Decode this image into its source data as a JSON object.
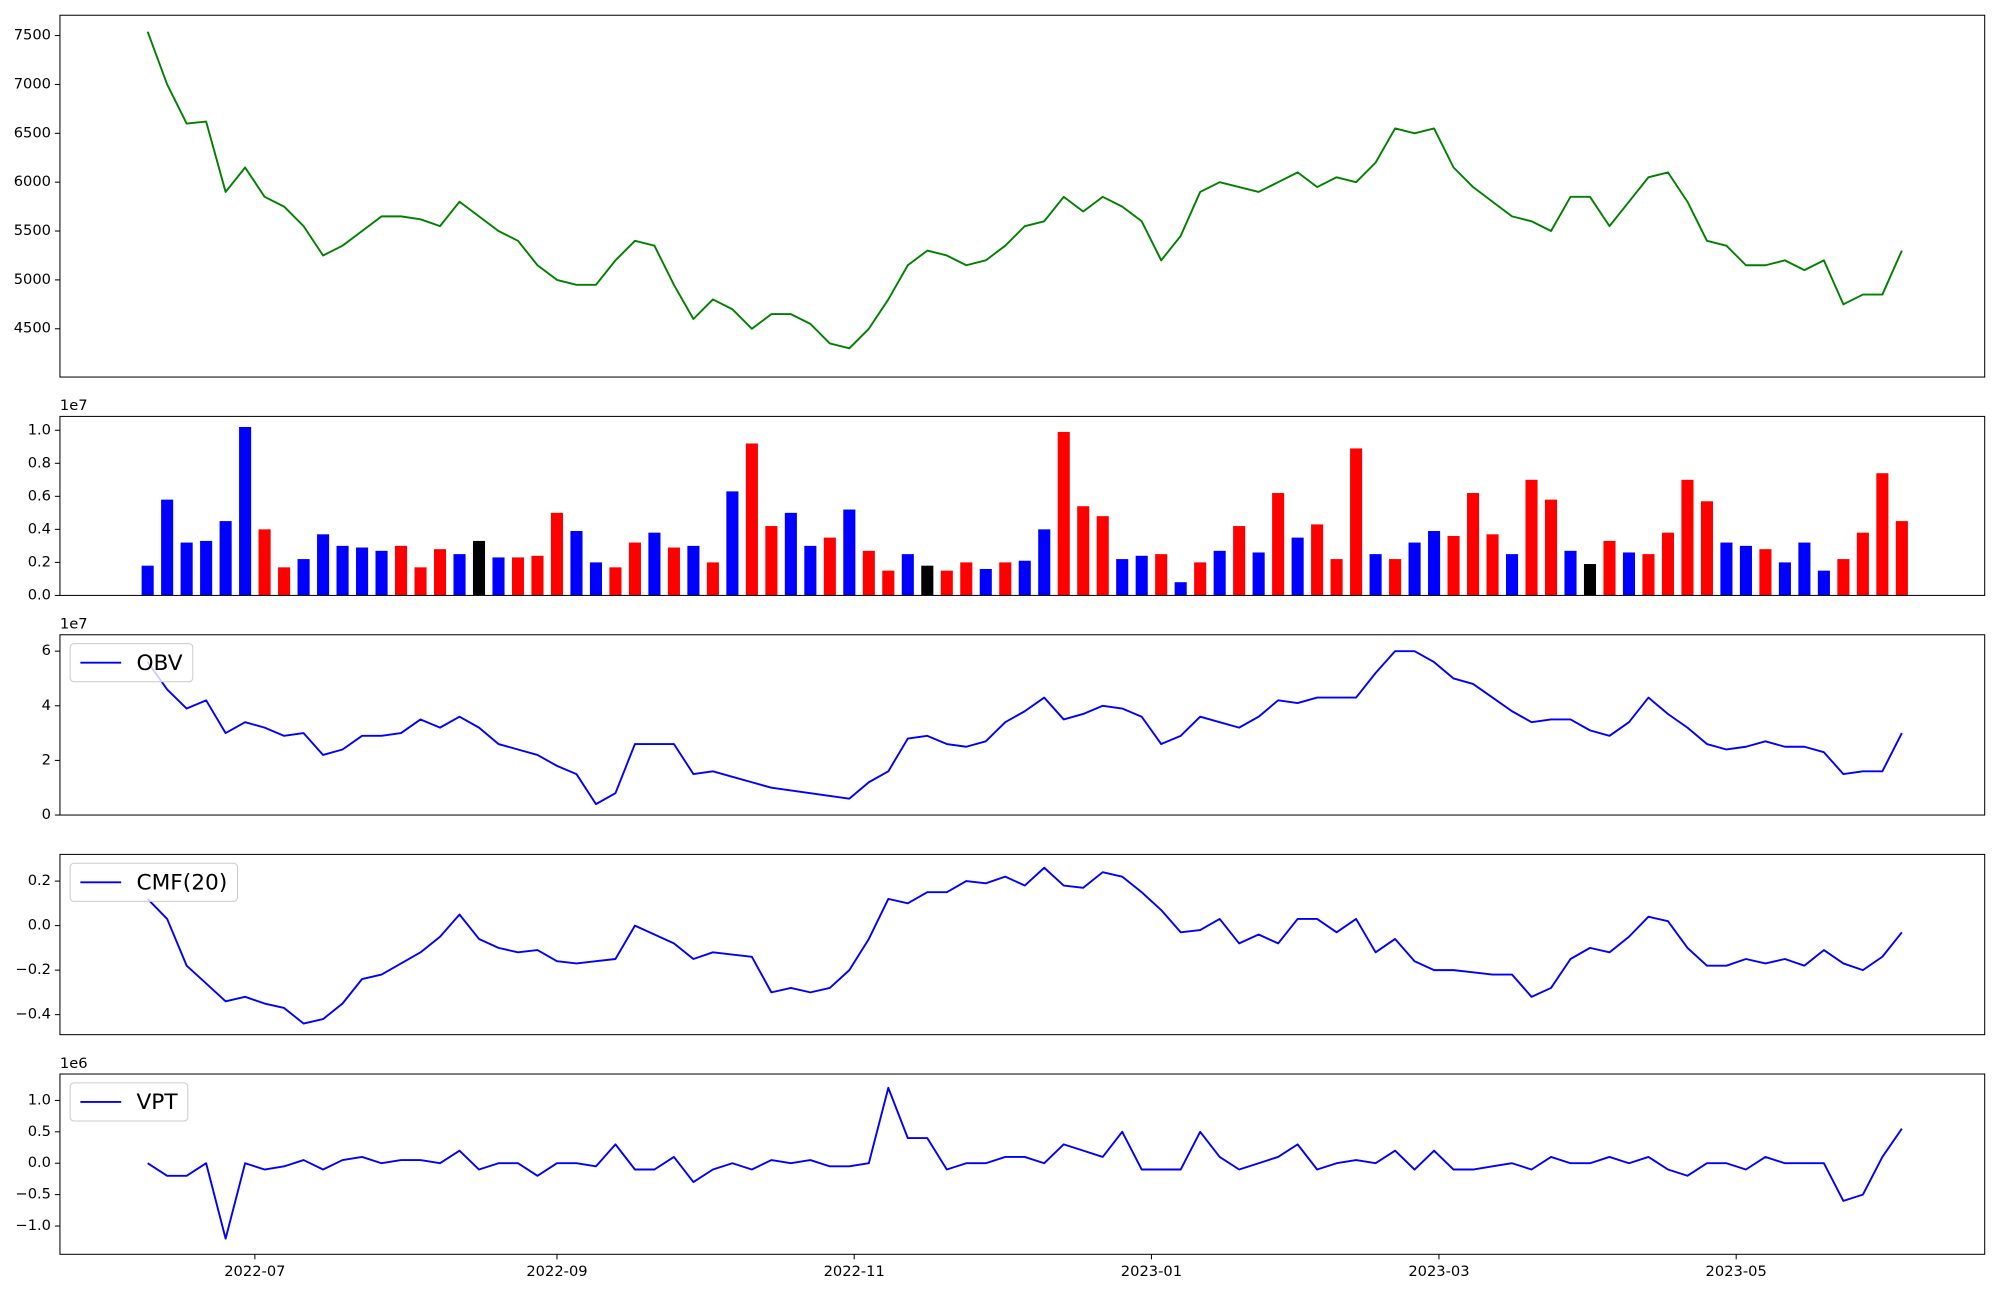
{
  "chart_data": [
    {
      "type": "line",
      "xlim": [
        -40,
        355
      ],
      "ylim": [
        4006,
        7708
      ],
      "yticks": [
        4500,
        5000,
        5500,
        6000,
        6500,
        7000,
        7500
      ],
      "x": [
        -22,
        -18,
        -14,
        -10,
        -6,
        -2,
        2,
        6,
        10,
        14,
        18,
        22,
        26,
        30,
        34,
        38,
        42,
        46,
        50,
        54,
        58,
        62,
        66,
        70,
        74,
        78,
        82,
        86,
        90,
        94,
        98,
        102,
        106,
        110,
        114,
        118,
        122,
        126,
        130,
        134,
        138,
        142,
        146,
        150,
        154,
        158,
        162,
        166,
        170,
        174,
        178,
        182,
        186,
        190,
        194,
        198,
        202,
        206,
        210,
        214,
        218,
        222,
        226,
        230,
        234,
        238,
        242,
        246,
        250,
        254,
        258,
        262,
        266,
        270,
        274,
        278,
        282,
        286,
        290,
        294,
        298,
        302,
        306,
        310,
        314,
        318,
        322,
        326,
        330,
        334,
        338
      ],
      "series": [
        {
          "color": "green",
          "values": [
            7540,
            7000,
            6600,
            6620,
            5900,
            6150,
            5850,
            5750,
            5550,
            5250,
            5350,
            5500,
            5650,
            5650,
            5620,
            5550,
            5800,
            5650,
            5500,
            5400,
            5150,
            5000,
            4950,
            4950,
            5200,
            5400,
            5350,
            4950,
            4600,
            4800,
            4700,
            4500,
            4650,
            4650,
            4550,
            4350,
            4300,
            4500,
            4800,
            5150,
            5300,
            5250,
            5150,
            5200,
            5350,
            5550,
            5600,
            5850,
            5700,
            5850,
            5750,
            5600,
            5200,
            5450,
            5900,
            6000,
            5950,
            5900,
            6000,
            6100,
            5950,
            6050,
            6000,
            6200,
            6550,
            6500,
            6550,
            6150,
            5950,
            5800,
            5650,
            5600,
            5500,
            5850,
            5850,
            5550,
            5800,
            6050,
            6100,
            5800,
            5400,
            5350,
            5150,
            5150,
            5200,
            5100,
            5200,
            4750,
            4850,
            4850,
            5300
          ]
        }
      ]
    },
    {
      "type": "bar",
      "xlim": [
        -40,
        355
      ],
      "ylim": [
        0,
        10840000
      ],
      "offset_label": "1e7",
      "yticks": [
        {
          "value": 0,
          "label": "0.0"
        },
        {
          "value": 2000000,
          "label": "0.2"
        },
        {
          "value": 4000000,
          "label": "0.4"
        },
        {
          "value": 6000000,
          "label": "0.6"
        },
        {
          "value": 8000000,
          "label": "0.8"
        },
        {
          "value": 10000000,
          "label": "1.0"
        }
      ],
      "x": [
        -22,
        -18,
        -14,
        -10,
        -6,
        -2,
        2,
        6,
        10,
        14,
        18,
        22,
        26,
        30,
        34,
        38,
        42,
        46,
        50,
        54,
        58,
        62,
        66,
        70,
        74,
        78,
        82,
        86,
        90,
        94,
        98,
        102,
        106,
        110,
        114,
        118,
        122,
        126,
        130,
        134,
        138,
        142,
        146,
        150,
        154,
        158,
        162,
        166,
        170,
        174,
        178,
        182,
        186,
        190,
        194,
        198,
        202,
        206,
        210,
        214,
        218,
        222,
        226,
        230,
        234,
        238,
        242,
        246,
        250,
        254,
        258,
        262,
        266,
        270,
        274,
        278,
        282,
        286,
        290,
        294,
        298,
        302,
        306,
        310,
        314,
        318,
        322,
        326,
        330,
        334,
        338
      ],
      "values": [
        1800000,
        5800000,
        3200000,
        3300000,
        4500000,
        10200000,
        4000000,
        1700000,
        2200000,
        3700000,
        3000000,
        2900000,
        2700000,
        3000000,
        1700000,
        2800000,
        2500000,
        3300000,
        2300000,
        2300000,
        2400000,
        5000000,
        3900000,
        2000000,
        1700000,
        3200000,
        3800000,
        2900000,
        3000000,
        2000000,
        6300000,
        9200000,
        4200000,
        5000000,
        3000000,
        3500000,
        5200000,
        2700000,
        1500000,
        2500000,
        1800000,
        1500000,
        2000000,
        1600000,
        2000000,
        2100000,
        4000000,
        9900000,
        5400000,
        4800000,
        2200000,
        2400000,
        2500000,
        800000,
        2000000,
        2700000,
        4200000,
        2600000,
        6200000,
        3500000,
        4300000,
        2200000,
        8900000,
        2500000,
        2200000,
        3200000,
        3900000,
        3600000,
        6200000,
        3700000,
        2500000,
        7000000,
        5800000,
        2700000,
        1900000,
        3300000,
        2600000,
        2500000,
        3800000,
        7000000,
        5700000,
        3200000,
        3000000,
        2800000,
        2000000,
        3200000,
        1500000,
        2200000,
        3800000,
        7400000,
        4500000
      ],
      "colors": [
        "blue",
        "blue",
        "blue",
        "blue",
        "blue",
        "blue",
        "red",
        "red",
        "blue",
        "blue",
        "blue",
        "blue",
        "blue",
        "red",
        "red",
        "red",
        "blue",
        "black",
        "blue",
        "red",
        "red",
        "red",
        "blue",
        "blue",
        "red",
        "red",
        "blue",
        "red",
        "blue",
        "red",
        "blue",
        "red",
        "red",
        "blue",
        "blue",
        "red",
        "blue",
        "red",
        "red",
        "blue",
        "black",
        "red",
        "red",
        "blue",
        "red",
        "blue",
        "blue",
        "red",
        "red",
        "red",
        "blue",
        "blue",
        "red",
        "blue",
        "red",
        "blue",
        "red",
        "blue",
        "red",
        "blue",
        "red",
        "red",
        "red",
        "blue",
        "red",
        "blue",
        "blue",
        "red",
        "red",
        "red",
        "blue",
        "red",
        "red",
        "blue",
        "black",
        "red",
        "blue",
        "red",
        "red",
        "red",
        "red",
        "blue",
        "blue",
        "red",
        "blue",
        "blue",
        "blue",
        "red",
        "red",
        "red",
        "red"
      ]
    },
    {
      "type": "line",
      "xlim": [
        -40,
        355
      ],
      "ylim": [
        0,
        66000000
      ],
      "offset_label": "1e7",
      "legend": "upper left",
      "yticks": [
        {
          "value": 0,
          "label": "0"
        },
        {
          "value": 20000000,
          "label": "2"
        },
        {
          "value": 40000000,
          "label": "4"
        },
        {
          "value": 60000000,
          "label": "6"
        }
      ],
      "x": [
        -22,
        -18,
        -14,
        -10,
        -6,
        -2,
        2,
        6,
        10,
        14,
        18,
        22,
        26,
        30,
        34,
        38,
        42,
        46,
        50,
        54,
        58,
        62,
        66,
        70,
        74,
        78,
        82,
        86,
        90,
        94,
        98,
        102,
        106,
        110,
        114,
        118,
        122,
        126,
        130,
        134,
        138,
        142,
        146,
        150,
        154,
        158,
        162,
        166,
        170,
        174,
        178,
        182,
        186,
        190,
        194,
        198,
        202,
        206,
        210,
        214,
        218,
        222,
        226,
        230,
        234,
        238,
        242,
        246,
        250,
        254,
        258,
        262,
        266,
        270,
        274,
        278,
        282,
        286,
        290,
        294,
        298,
        302,
        306,
        310,
        314,
        318,
        322,
        326,
        330,
        334,
        338
      ],
      "series": [
        {
          "name": "OBV",
          "color": "blue",
          "values": [
            56000000,
            46000000,
            39000000,
            42000000,
            30000000,
            34000000,
            32000000,
            29000000,
            30000000,
            22000000,
            24000000,
            29000000,
            29000000,
            30000000,
            35000000,
            32000000,
            36000000,
            32000000,
            26000000,
            24000000,
            22000000,
            18000000,
            15000000,
            4000000,
            8000000,
            26000000,
            26000000,
            26000000,
            15000000,
            16000000,
            14000000,
            12000000,
            10000000,
            9000000,
            8000000,
            7000000,
            6000000,
            12000000,
            16000000,
            28000000,
            29000000,
            26000000,
            25000000,
            27000000,
            34000000,
            38000000,
            43000000,
            35000000,
            37000000,
            40000000,
            39000000,
            36000000,
            26000000,
            29000000,
            36000000,
            34000000,
            32000000,
            36000000,
            42000000,
            41000000,
            43000000,
            43000000,
            43000000,
            52000000,
            60000000,
            60000000,
            56000000,
            50000000,
            48000000,
            43000000,
            38000000,
            34000000,
            35000000,
            35000000,
            31000000,
            29000000,
            34000000,
            43000000,
            37000000,
            32000000,
            26000000,
            24000000,
            25000000,
            27000000,
            25000000,
            25000000,
            23000000,
            15000000,
            16000000,
            16000000,
            30000000
          ]
        }
      ]
    },
    {
      "type": "line",
      "xlim": [
        -40,
        355
      ],
      "ylim": [
        -0.49,
        0.32
      ],
      "legend": "upper left",
      "yticks": [
        {
          "value": -0.4,
          "label": "−0.4"
        },
        {
          "value": -0.2,
          "label": "−0.2"
        },
        {
          "value": 0,
          "label": "0.0"
        },
        {
          "value": 0.2,
          "label": "0.2"
        }
      ],
      "x": [
        -22,
        -18,
        -14,
        -10,
        -6,
        -2,
        2,
        6,
        10,
        14,
        18,
        22,
        26,
        30,
        34,
        38,
        42,
        46,
        50,
        54,
        58,
        62,
        66,
        70,
        74,
        78,
        82,
        86,
        90,
        94,
        98,
        102,
        106,
        110,
        114,
        118,
        122,
        126,
        130,
        134,
        138,
        142,
        146,
        150,
        154,
        158,
        162,
        166,
        170,
        174,
        178,
        182,
        186,
        190,
        194,
        198,
        202,
        206,
        210,
        214,
        218,
        222,
        226,
        230,
        234,
        238,
        242,
        246,
        250,
        254,
        258,
        262,
        266,
        270,
        274,
        278,
        282,
        286,
        290,
        294,
        298,
        302,
        306,
        310,
        314,
        318,
        322,
        326,
        330,
        334,
        338
      ],
      "series": [
        {
          "name": "CMF(20)",
          "color": "blue",
          "values": [
            0.12,
            0.03,
            -0.18,
            -0.26,
            -0.34,
            -0.32,
            -0.35,
            -0.37,
            -0.44,
            -0.42,
            -0.35,
            -0.24,
            -0.22,
            -0.17,
            -0.12,
            -0.05,
            0.05,
            -0.06,
            -0.1,
            -0.12,
            -0.11,
            -0.16,
            -0.17,
            -0.16,
            -0.15,
            0.0,
            -0.04,
            -0.08,
            -0.15,
            -0.12,
            -0.13,
            -0.14,
            -0.3,
            -0.28,
            -0.3,
            -0.28,
            -0.2,
            -0.06,
            0.12,
            0.1,
            0.15,
            0.15,
            0.2,
            0.19,
            0.22,
            0.18,
            0.26,
            0.18,
            0.17,
            0.24,
            0.22,
            0.15,
            0.07,
            -0.03,
            -0.02,
            0.03,
            -0.08,
            -0.04,
            -0.08,
            0.03,
            0.03,
            -0.03,
            0.03,
            -0.12,
            -0.06,
            -0.16,
            -0.2,
            -0.2,
            -0.21,
            -0.22,
            -0.22,
            -0.32,
            -0.28,
            -0.15,
            -0.1,
            -0.12,
            -0.05,
            0.04,
            0.02,
            -0.1,
            -0.18,
            -0.18,
            -0.15,
            -0.17,
            -0.15,
            -0.18,
            -0.11,
            -0.17,
            -0.2,
            -0.14,
            -0.03
          ]
        }
      ]
    },
    {
      "type": "line",
      "xlim": [
        -40,
        355
      ],
      "ylim": [
        -1450000,
        1420000
      ],
      "offset_label": "1e6",
      "legend": "upper left",
      "yticks": [
        {
          "value": -1000000,
          "label": "−1.0"
        },
        {
          "value": -500000,
          "label": "−0.5"
        },
        {
          "value": 0,
          "label": "0.0"
        },
        {
          "value": 500000,
          "label": "0.5"
        },
        {
          "value": 1000000,
          "label": "1.0"
        }
      ],
      "xticks": [
        {
          "value": 0,
          "label": "2022-07"
        },
        {
          "value": 62,
          "label": "2022-09"
        },
        {
          "value": 123,
          "label": "2022-11"
        },
        {
          "value": 184,
          "label": "2023-01"
        },
        {
          "value": 243,
          "label": "2023-03"
        },
        {
          "value": 304,
          "label": "2023-05"
        }
      ],
      "x": [
        -22,
        -18,
        -14,
        -10,
        -6,
        -2,
        2,
        6,
        10,
        14,
        18,
        22,
        26,
        30,
        34,
        38,
        42,
        46,
        50,
        54,
        58,
        62,
        66,
        70,
        74,
        78,
        82,
        86,
        90,
        94,
        98,
        102,
        106,
        110,
        114,
        118,
        122,
        126,
        130,
        134,
        138,
        142,
        146,
        150,
        154,
        158,
        162,
        166,
        170,
        174,
        178,
        182,
        186,
        190,
        194,
        198,
        202,
        206,
        210,
        214,
        218,
        222,
        226,
        230,
        234,
        238,
        242,
        246,
        250,
        254,
        258,
        262,
        266,
        270,
        274,
        278,
        282,
        286,
        290,
        294,
        298,
        302,
        306,
        310,
        314,
        318,
        322,
        326,
        330,
        334,
        338
      ],
      "series": [
        {
          "name": "VPT",
          "color": "blue",
          "values": [
            0,
            -200000,
            -200000,
            0,
            -1200000,
            0,
            -100000,
            -50000,
            50000,
            -100000,
            50000,
            100000,
            0,
            50000,
            50000,
            0,
            200000,
            -100000,
            0,
            0,
            -200000,
            0,
            0,
            -50000,
            300000,
            -100000,
            -100000,
            100000,
            -300000,
            -100000,
            0,
            -100000,
            50000,
            0,
            50000,
            -50000,
            -50000,
            0,
            1200000,
            400000,
            400000,
            -100000,
            0,
            0,
            100000,
            100000,
            0,
            300000,
            200000,
            100000,
            500000,
            -100000,
            -100000,
            -100000,
            500000,
            100000,
            -100000,
            0,
            100000,
            300000,
            -100000,
            0,
            50000,
            0,
            200000,
            -100000,
            200000,
            -100000,
            -100000,
            -50000,
            0,
            -100000,
            100000,
            0,
            0,
            100000,
            0,
            100000,
            -100000,
            -200000,
            0,
            0,
            -100000,
            100000,
            0,
            0,
            0,
            -600000,
            -500000,
            100000,
            550000
          ]
        }
      ]
    }
  ]
}
